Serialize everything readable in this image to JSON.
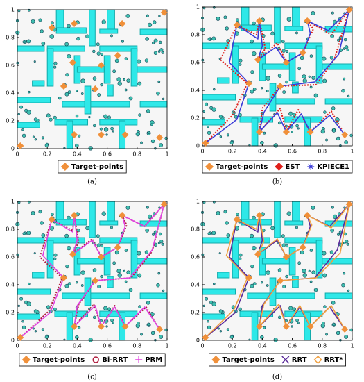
{
  "chart_data": [
    {
      "type": "path",
      "caption": "(a)",
      "xlim": [
        0,
        1
      ],
      "ylim": [
        0,
        1
      ],
      "xticks": [
        0,
        0.2,
        0.4,
        0.6,
        0.8,
        1
      ],
      "yticks": [
        0,
        0.2,
        0.4,
        0.6,
        0.8,
        1
      ],
      "targets": {
        "name": "Target-points",
        "color": "#f0903a",
        "x": [
          0.02,
          0.23,
          0.38,
          0.7,
          0.98,
          0.67,
          0.37,
          0.56,
          0.31,
          0.52,
          0.38,
          0.56,
          0.72,
          0.95
        ],
        "y": [
          0.02,
          0.87,
          0.9,
          0.9,
          0.98,
          0.67,
          0.62,
          0.6,
          0.45,
          0.43,
          0.1,
          0.1,
          0.1,
          0.08
        ]
      },
      "series": []
    },
    {
      "type": "path",
      "caption": "(b)",
      "xlim": [
        0,
        1
      ],
      "ylim": [
        0,
        1
      ],
      "xticks": [
        0,
        0.2,
        0.4,
        0.6,
        0.8,
        1
      ],
      "yticks": [
        0,
        0.2,
        0.4,
        0.6,
        0.8,
        1
      ],
      "targets": {
        "name": "Target-points",
        "color": "#f0903a",
        "x": [
          0.02,
          0.23,
          0.38,
          0.7,
          0.98,
          0.67,
          0.37,
          0.56,
          0.31,
          0.52,
          0.38,
          0.56,
          0.72,
          0.95
        ],
        "y": [
          0.02,
          0.87,
          0.9,
          0.9,
          0.98,
          0.67,
          0.62,
          0.6,
          0.45,
          0.43,
          0.1,
          0.1,
          0.1,
          0.08
        ]
      },
      "series": [
        {
          "name": "EST",
          "color": "#e0201b",
          "marker": "diamond",
          "dash": "dotted",
          "x": [
            0.02,
            0.2,
            0.3,
            0.12,
            0.23,
            0.36,
            0.38,
            0.42,
            0.37,
            0.5,
            0.56,
            0.67,
            0.74,
            0.7,
            0.86,
            0.98,
            0.88,
            0.76,
            0.52,
            0.4,
            0.38,
            0.52,
            0.56,
            0.64,
            0.72,
            0.86,
            0.95
          ],
          "y": [
            0.02,
            0.22,
            0.45,
            0.62,
            0.87,
            0.8,
            0.9,
            0.7,
            0.62,
            0.74,
            0.6,
            0.67,
            0.84,
            0.9,
            0.8,
            0.98,
            0.62,
            0.44,
            0.43,
            0.27,
            0.1,
            0.27,
            0.1,
            0.26,
            0.1,
            0.25,
            0.08
          ]
        },
        {
          "name": "KPIECE1",
          "color": "#3a3ad8",
          "marker": "star",
          "dash": "solid",
          "x": [
            0.02,
            0.23,
            0.31,
            0.18,
            0.23,
            0.37,
            0.38,
            0.4,
            0.37,
            0.49,
            0.56,
            0.67,
            0.72,
            0.7,
            0.84,
            0.98,
            0.91,
            0.75,
            0.52,
            0.41,
            0.38,
            0.5,
            0.56,
            0.66,
            0.72,
            0.85,
            0.95
          ],
          "y": [
            0.02,
            0.19,
            0.45,
            0.6,
            0.87,
            0.77,
            0.9,
            0.72,
            0.62,
            0.71,
            0.6,
            0.67,
            0.81,
            0.9,
            0.83,
            0.98,
            0.66,
            0.46,
            0.43,
            0.24,
            0.1,
            0.24,
            0.1,
            0.23,
            0.1,
            0.22,
            0.08
          ]
        }
      ]
    },
    {
      "type": "path",
      "caption": "(c)",
      "xlim": [
        0,
        1
      ],
      "ylim": [
        0,
        1
      ],
      "xticks": [
        0,
        0.2,
        0.4,
        0.6,
        0.8,
        1
      ],
      "yticks": [
        0,
        0.2,
        0.4,
        0.6,
        0.8,
        1
      ],
      "targets": {
        "name": "Target-points",
        "color": "#f0903a",
        "x": [
          0.02,
          0.23,
          0.38,
          0.7,
          0.98,
          0.67,
          0.37,
          0.56,
          0.31,
          0.52,
          0.38,
          0.56,
          0.72,
          0.95
        ],
        "y": [
          0.02,
          0.87,
          0.9,
          0.9,
          0.98,
          0.67,
          0.62,
          0.6,
          0.45,
          0.43,
          0.1,
          0.1,
          0.1,
          0.08
        ]
      },
      "series": [
        {
          "name": "Bi-RRT",
          "color": "#b02040",
          "marker": "circle-open",
          "dash": "dotted",
          "x": [
            0.02,
            0.21,
            0.3,
            0.15,
            0.23,
            0.37,
            0.38,
            0.41,
            0.37,
            0.5,
            0.56,
            0.67,
            0.73,
            0.7,
            0.85,
            0.98,
            0.9,
            0.76,
            0.52,
            0.41,
            0.38,
            0.51,
            0.56,
            0.65,
            0.72,
            0.86,
            0.95
          ],
          "y": [
            0.02,
            0.21,
            0.45,
            0.6,
            0.87,
            0.79,
            0.9,
            0.71,
            0.62,
            0.73,
            0.6,
            0.67,
            0.83,
            0.9,
            0.82,
            0.98,
            0.64,
            0.45,
            0.43,
            0.26,
            0.1,
            0.26,
            0.1,
            0.25,
            0.1,
            0.24,
            0.08
          ]
        },
        {
          "name": "PRM",
          "color": "#e040e0",
          "marker": "plus",
          "dash": "solid",
          "x": [
            0.02,
            0.22,
            0.31,
            0.17,
            0.23,
            0.37,
            0.38,
            0.4,
            0.37,
            0.5,
            0.56,
            0.67,
            0.72,
            0.7,
            0.85,
            0.98,
            0.9,
            0.75,
            0.52,
            0.4,
            0.38,
            0.52,
            0.56,
            0.65,
            0.72,
            0.85,
            0.95
          ],
          "y": [
            0.02,
            0.2,
            0.45,
            0.61,
            0.87,
            0.78,
            0.9,
            0.72,
            0.62,
            0.72,
            0.6,
            0.67,
            0.82,
            0.9,
            0.82,
            0.98,
            0.65,
            0.45,
            0.43,
            0.25,
            0.1,
            0.25,
            0.1,
            0.24,
            0.1,
            0.24,
            0.08
          ]
        }
      ]
    },
    {
      "type": "path",
      "caption": "(d)",
      "xlim": [
        0,
        1
      ],
      "ylim": [
        0,
        1
      ],
      "xticks": [
        0,
        0.2,
        0.4,
        0.6,
        0.8,
        1
      ],
      "yticks": [
        0,
        0.2,
        0.4,
        0.6,
        0.8,
        1
      ],
      "targets": {
        "name": "Target-points",
        "color": "#f0903a",
        "x": [
          0.02,
          0.23,
          0.38,
          0.7,
          0.98,
          0.67,
          0.37,
          0.56,
          0.31,
          0.52,
          0.38,
          0.56,
          0.72,
          0.95
        ],
        "y": [
          0.02,
          0.87,
          0.9,
          0.9,
          0.98,
          0.67,
          0.62,
          0.6,
          0.45,
          0.43,
          0.1,
          0.1,
          0.1,
          0.08
        ]
      },
      "series": [
        {
          "name": "RRT",
          "color": "#5a2a9a",
          "marker": "x",
          "dash": "solid",
          "x": [
            0.02,
            0.22,
            0.31,
            0.18,
            0.23,
            0.37,
            0.38,
            0.4,
            0.37,
            0.5,
            0.56,
            0.67,
            0.72,
            0.7,
            0.85,
            0.98,
            0.9,
            0.75,
            0.52,
            0.4,
            0.38,
            0.52,
            0.56,
            0.65,
            0.72,
            0.85,
            0.95
          ],
          "y": [
            0.02,
            0.2,
            0.45,
            0.6,
            0.87,
            0.78,
            0.9,
            0.72,
            0.62,
            0.72,
            0.6,
            0.67,
            0.82,
            0.9,
            0.82,
            0.98,
            0.65,
            0.45,
            0.43,
            0.25,
            0.1,
            0.25,
            0.1,
            0.24,
            0.1,
            0.24,
            0.08
          ]
        },
        {
          "name": "RRT*",
          "color": "#f0a040",
          "marker": "diamond-open",
          "dash": "solid",
          "x": [
            0.02,
            0.21,
            0.3,
            0.16,
            0.23,
            0.36,
            0.38,
            0.41,
            0.37,
            0.5,
            0.56,
            0.67,
            0.73,
            0.7,
            0.86,
            0.98,
            0.92,
            0.76,
            0.52,
            0.41,
            0.38,
            0.51,
            0.56,
            0.65,
            0.72,
            0.86,
            0.95
          ],
          "y": [
            0.02,
            0.22,
            0.45,
            0.61,
            0.87,
            0.8,
            0.9,
            0.71,
            0.62,
            0.73,
            0.6,
            0.67,
            0.83,
            0.9,
            0.81,
            0.98,
            0.63,
            0.45,
            0.43,
            0.26,
            0.1,
            0.26,
            0.1,
            0.25,
            0.1,
            0.25,
            0.08
          ]
        }
      ]
    }
  ]
}
